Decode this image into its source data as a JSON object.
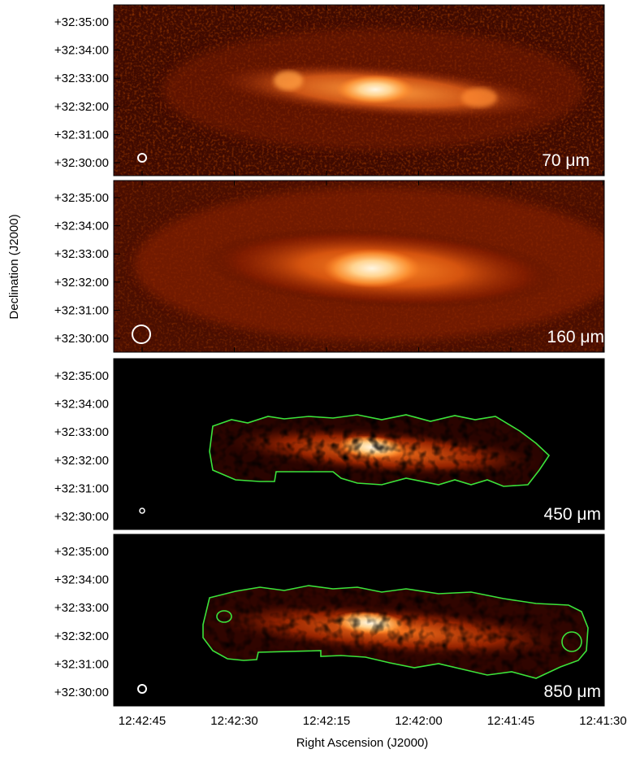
{
  "figure": {
    "y_axis_title": "Declination (J2000)",
    "x_axis_title": "Right Ascension (J2000)",
    "dec_ticks": [
      "+32:35:00",
      "+32:34:00",
      "+32:33:00",
      "+32:32:00",
      "+32:31:00",
      "+32:30:00"
    ],
    "ra_ticks": [
      "12:42:45",
      "12:42:30",
      "12:42:15",
      "12:42:00",
      "12:41:45",
      "12:41:30"
    ],
    "panels": [
      {
        "label": "70 μm",
        "contour": false,
        "beam": "small"
      },
      {
        "label": "160 μm",
        "contour": false,
        "beam": "large"
      },
      {
        "label": "450 μm",
        "contour": true,
        "beam": "tiny"
      },
      {
        "label": "850 μm",
        "contour": true,
        "beam": "small"
      }
    ],
    "colors": {
      "background_dark": "#000000",
      "dust_low": "#3b0800",
      "dust_mid": "#b42d00",
      "dust_high": "#ff9a36",
      "dust_peak": "#fff4dc",
      "contour": "#3be33b",
      "beam": "#ffffff"
    }
  }
}
